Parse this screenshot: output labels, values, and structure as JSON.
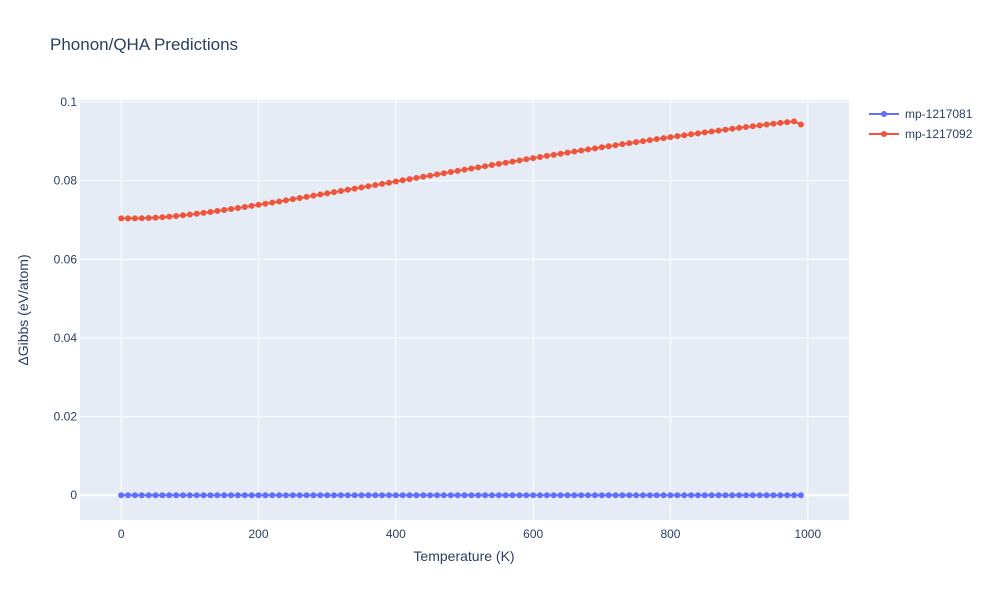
{
  "chart_data": {
    "type": "line",
    "title": "Phonon/QHA Predictions",
    "xlabel": "Temperature (K)",
    "ylabel": "ΔGibbs (eV/atom)",
    "xlim": [
      -60,
      1060
    ],
    "ylim": [
      -0.0063,
      0.1005
    ],
    "x_ticks": [
      0,
      200,
      400,
      600,
      800,
      1000
    ],
    "x_tick_labels": [
      "0",
      "200",
      "400",
      "600",
      "800",
      "1000"
    ],
    "y_ticks": [
      0,
      0.02,
      0.04,
      0.06,
      0.08,
      0.1
    ],
    "y_tick_labels": [
      "0",
      "0.02",
      "0.04",
      "0.06",
      "0.08",
      "0.1"
    ],
    "grid": true,
    "legend_position": "top-right",
    "x": [
      0,
      10,
      20,
      30,
      40,
      50,
      60,
      70,
      80,
      90,
      100,
      110,
      120,
      130,
      140,
      150,
      160,
      170,
      180,
      190,
      200,
      210,
      220,
      230,
      240,
      250,
      260,
      270,
      280,
      290,
      300,
      310,
      320,
      330,
      340,
      350,
      360,
      370,
      380,
      390,
      400,
      410,
      420,
      430,
      440,
      450,
      460,
      470,
      480,
      490,
      500,
      510,
      520,
      530,
      540,
      550,
      560,
      570,
      580,
      590,
      600,
      610,
      620,
      630,
      640,
      650,
      660,
      670,
      680,
      690,
      700,
      710,
      720,
      730,
      740,
      750,
      760,
      770,
      780,
      790,
      800,
      810,
      820,
      830,
      840,
      850,
      860,
      870,
      880,
      890,
      900,
      910,
      920,
      930,
      940,
      950,
      960,
      970,
      980,
      990
    ],
    "series": [
      {
        "name": "mp-1217081",
        "color": "#636efa",
        "values": [
          0,
          0,
          0,
          0,
          0,
          0,
          0,
          0,
          0,
          0,
          0,
          0,
          0,
          0,
          0,
          0,
          0,
          0,
          0,
          0,
          0,
          0,
          0,
          0,
          0,
          0,
          0,
          0,
          0,
          0,
          0,
          0,
          0,
          0,
          0,
          0,
          0,
          0,
          0,
          0,
          0,
          0,
          0,
          0,
          0,
          0,
          0,
          0,
          0,
          0,
          0,
          0,
          0,
          0,
          0,
          0,
          0,
          0,
          0,
          0,
          0,
          0,
          0,
          0,
          0,
          0,
          0,
          0,
          0,
          0,
          0,
          0,
          0,
          0,
          0,
          0,
          0,
          0,
          0,
          0,
          0,
          0,
          0,
          0,
          0,
          0,
          0,
          0,
          0,
          0,
          0,
          0,
          0,
          0,
          0,
          0,
          0,
          0,
          0,
          0
        ]
      },
      {
        "name": "mp-1217092",
        "color": "#ef553b",
        "values": [
          0.0704,
          0.0704,
          0.0704,
          0.07043,
          0.07049,
          0.07058,
          0.0707,
          0.07084,
          0.071,
          0.07118,
          0.07137,
          0.07158,
          0.0718,
          0.07203,
          0.07227,
          0.07252,
          0.07277,
          0.07303,
          0.0733,
          0.07357,
          0.07385,
          0.07413,
          0.07441,
          0.0747,
          0.07499,
          0.07528,
          0.07557,
          0.07587,
          0.07617,
          0.07647,
          0.07677,
          0.07707,
          0.07737,
          0.07767,
          0.07797,
          0.07827,
          0.07857,
          0.07887,
          0.07917,
          0.07947,
          0.07978,
          0.08008,
          0.08038,
          0.08068,
          0.08098,
          0.08128,
          0.08158,
          0.08188,
          0.08218,
          0.08248,
          0.08278,
          0.08308,
          0.08338,
          0.08367,
          0.08397,
          0.08426,
          0.08455,
          0.08484,
          0.08513,
          0.08542,
          0.08571,
          0.08599,
          0.08628,
          0.08656,
          0.08684,
          0.08712,
          0.08739,
          0.08767,
          0.08794,
          0.08821,
          0.08848,
          0.08875,
          0.08901,
          0.08927,
          0.08953,
          0.08979,
          0.09005,
          0.0903,
          0.09055,
          0.0908,
          0.09105,
          0.0913,
          0.09154,
          0.09178,
          0.09202,
          0.09226,
          0.09249,
          0.09272,
          0.09295,
          0.09318,
          0.0934,
          0.09362,
          0.09384,
          0.09405,
          0.09426,
          0.09447,
          0.09467,
          0.09487,
          0.09507,
          0.09427
        ]
      }
    ]
  }
}
